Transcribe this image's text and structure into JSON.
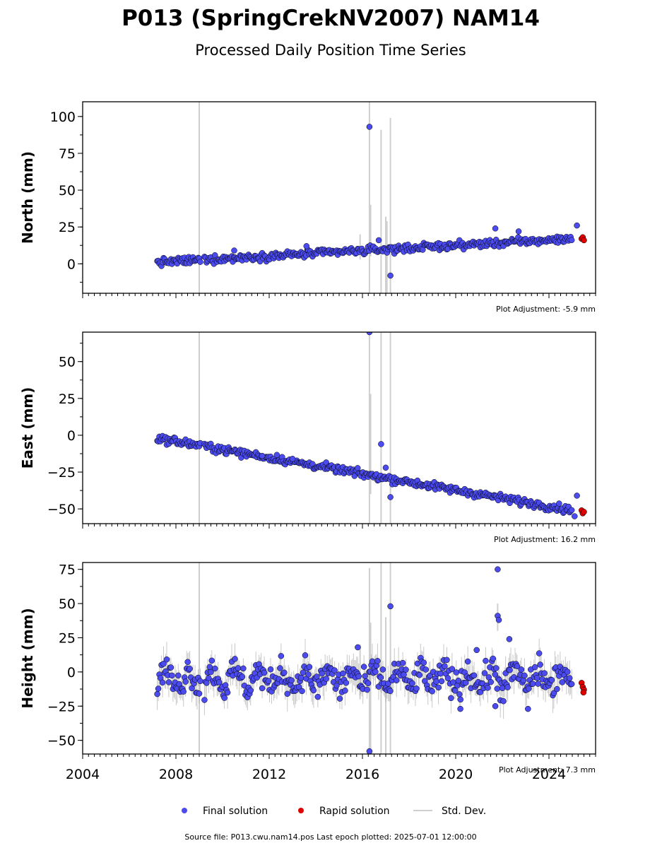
{
  "title": "P013 (SpringCrekNV2007) NAM14",
  "subtitle": "Processed Daily Position Time Series",
  "source_note": "Source file: P013.cwu.nam14.pos  Last epoch plotted: 2025-07-01 12:00:00",
  "legend": {
    "final_label": "Final solution",
    "rapid_label": "Rapid solution",
    "std_label": "Std. Dev."
  },
  "colors": {
    "final": "#4b4bf0",
    "rapid": "#e00000",
    "std": "#cfcfcf",
    "outline": "#000000"
  },
  "x_ticks": [
    "2004",
    "2008",
    "2012",
    "2016",
    "2020",
    "2024"
  ],
  "chart_data": [
    {
      "type": "scatter",
      "name": "north",
      "ylabel": "North (mm)",
      "adjustment": "Plot Adjustment: -5.9 mm",
      "xlim": [
        2004.0,
        2026.0
      ],
      "ylim": [
        -20,
        110
      ],
      "yticks": [
        "100",
        "75",
        "50",
        "25",
        "0"
      ],
      "trend": {
        "x": [
          2007.2,
          2025.0
        ],
        "y": [
          1,
          17
        ]
      },
      "series": [
        {
          "name": "Final solution",
          "points": [
            [
              2016.3,
              93
            ],
            [
              2017.2,
              -8
            ],
            [
              2016.7,
              16
            ],
            [
              2021.7,
              24
            ],
            [
              2022.7,
              22
            ],
            [
              2025.2,
              26
            ],
            [
              2013.6,
              12
            ],
            [
              2010.5,
              9
            ]
          ]
        },
        {
          "name": "Rapid solution",
          "points": [
            [
              2025.4,
              17
            ],
            [
              2025.45,
              18
            ],
            [
              2025.5,
              16
            ]
          ]
        }
      ],
      "std_spikes": [
        [
          2009.0,
          -20,
          110
        ],
        [
          2016.3,
          -20,
          110
        ],
        [
          2016.35,
          5,
          40
        ],
        [
          2016.8,
          -20,
          91
        ],
        [
          2017.0,
          -20,
          32
        ],
        [
          2017.05,
          -20,
          29
        ],
        [
          2017.2,
          -20,
          99
        ],
        [
          2015.9,
          3,
          20
        ]
      ]
    },
    {
      "type": "scatter",
      "name": "east",
      "ylabel": "East (mm)",
      "adjustment": "Plot Adjustment: 16.2 mm",
      "xlim": [
        2004.0,
        2026.0
      ],
      "ylim": [
        -60,
        70
      ],
      "yticks": [
        "50",
        "25",
        "0",
        "−25",
        "−50"
      ],
      "trend": {
        "x": [
          2007.2,
          2025.0
        ],
        "y": [
          -2,
          -51
        ]
      },
      "series": [
        {
          "name": "Final solution",
          "points": [
            [
              2016.3,
              70
            ],
            [
              2016.8,
              -6
            ],
            [
              2017.2,
              -42
            ],
            [
              2017.0,
              -22
            ],
            [
              2013.0,
              -16
            ],
            [
              2011.7,
              -14
            ],
            [
              2025.2,
              -41
            ],
            [
              2025.1,
              -55
            ]
          ]
        },
        {
          "name": "Rapid solution",
          "points": [
            [
              2025.4,
              -51
            ],
            [
              2025.45,
              -53
            ],
            [
              2025.5,
              -52
            ]
          ]
        }
      ],
      "std_spikes": [
        [
          2009.0,
          -60,
          70
        ],
        [
          2016.3,
          -60,
          70
        ],
        [
          2016.35,
          -40,
          28
        ],
        [
          2016.8,
          -60,
          70
        ],
        [
          2017.2,
          -60,
          70
        ]
      ]
    },
    {
      "type": "scatter",
      "name": "height",
      "ylabel": "Height (mm)",
      "adjustment": "Plot Adjustment: 7.3 mm",
      "xlim": [
        2004.0,
        2026.0
      ],
      "ylim": [
        -60,
        80
      ],
      "yticks": [
        "75",
        "50",
        "25",
        "0",
        "−25",
        "−50"
      ],
      "trend": {
        "x": [
          2007.2,
          2025.0
        ],
        "y": [
          -5,
          -5
        ]
      },
      "series": [
        {
          "name": "Final solution",
          "points": [
            [
              2021.8,
              75
            ],
            [
              2021.8,
              41
            ],
            [
              2021.85,
              38
            ],
            [
              2017.2,
              48
            ],
            [
              2022.3,
              24
            ],
            [
              2016.3,
              -58
            ],
            [
              2021.7,
              -25
            ],
            [
              2020.2,
              -27
            ],
            [
              2023.1,
              -27
            ],
            [
              2015.8,
              18
            ],
            [
              2020.9,
              16
            ]
          ]
        },
        {
          "name": "Rapid solution",
          "points": [
            [
              2025.4,
              -8
            ],
            [
              2025.45,
              -11
            ],
            [
              2025.5,
              -13
            ],
            [
              2025.48,
              -15
            ]
          ]
        }
      ],
      "std_spikes": [
        [
          2009.0,
          -60,
          80
        ],
        [
          2016.3,
          -60,
          76
        ],
        [
          2016.35,
          -60,
          36
        ],
        [
          2016.8,
          -60,
          80
        ],
        [
          2017.0,
          -60,
          40
        ],
        [
          2017.2,
          -60,
          80
        ],
        [
          2021.8,
          30,
          50
        ],
        [
          2015.9,
          -20,
          20
        ]
      ]
    }
  ]
}
